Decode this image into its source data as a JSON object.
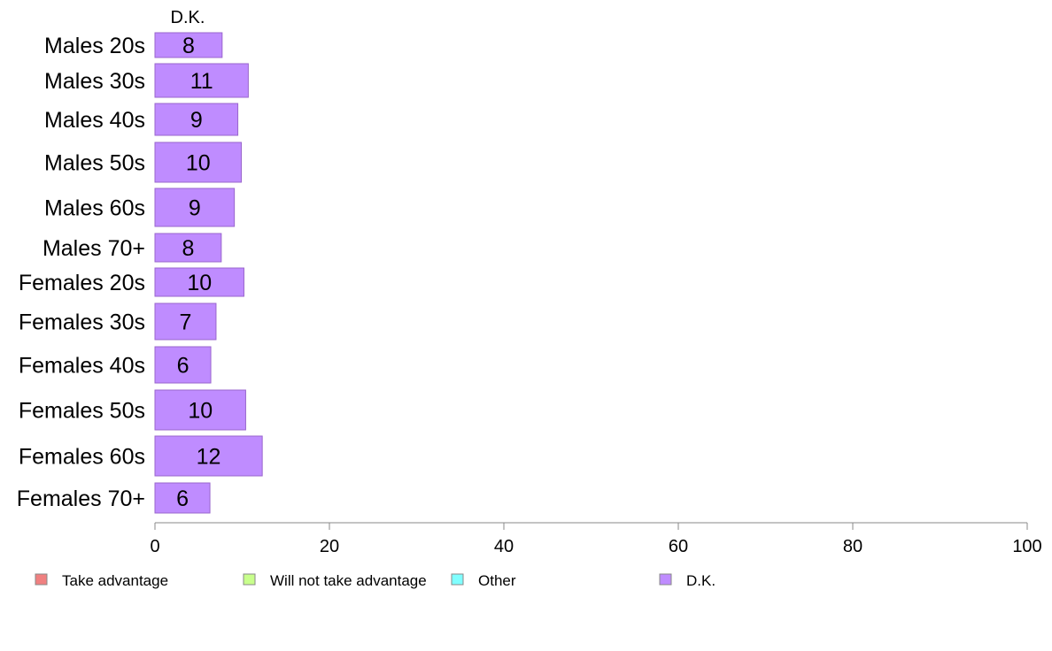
{
  "chart_data": {
    "type": "bar",
    "orientation": "horizontal",
    "stacked": true,
    "categories": [
      "Males 20s",
      "Males 30s",
      "Males 40s",
      "Males 50s",
      "Males 60s",
      "Males 70+",
      "Females 20s",
      "Females 30s",
      "Females 40s",
      "Females 50s",
      "Females 60s",
      "Females 70+"
    ],
    "series": [
      {
        "name": "Take advantage",
        "color": "#f08080",
        "values": [
          null,
          null,
          null,
          null,
          null,
          null,
          null,
          null,
          null,
          null,
          null,
          null
        ]
      },
      {
        "name": "Will not take advantage",
        "color": "#c8ff8c",
        "values": [
          null,
          null,
          null,
          null,
          null,
          null,
          null,
          null,
          null,
          null,
          null,
          null
        ]
      },
      {
        "name": "Other",
        "color": "#80ffff",
        "values": [
          null,
          null,
          null,
          null,
          null,
          null,
          null,
          null,
          null,
          null,
          null,
          null
        ]
      },
      {
        "name": "D.K.",
        "color": "#bf8cff",
        "values": [
          7.7,
          10.7,
          9.5,
          9.9,
          9.1,
          7.6,
          10.2,
          7.0,
          6.4,
          10.4,
          12.3,
          6.3
        ]
      }
    ],
    "data_labels": [
      "8",
      "11",
      "9",
      "10",
      "9",
      "8",
      "10",
      "7",
      "6",
      "10",
      "12",
      "6"
    ],
    "visible_series_header": "D.K.",
    "xlim": [
      0,
      100
    ],
    "xticks": [
      0,
      20,
      40,
      60,
      80,
      100
    ],
    "grid": false,
    "legend_position": "bottom"
  }
}
